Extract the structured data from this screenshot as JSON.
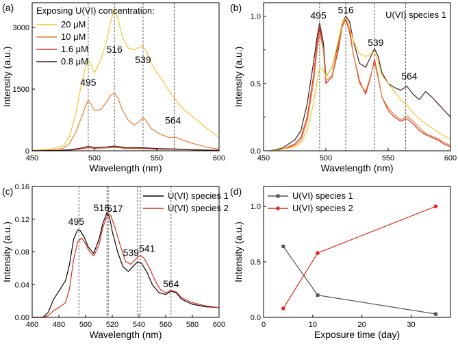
{
  "chart_data": [
    {
      "panel": "(a)",
      "type": "line",
      "xlabel": "Wavelength (nm)",
      "ylabel": "Intensity (a.u.)",
      "xlim": [
        450,
        600
      ],
      "ylim": [
        0,
        3600
      ],
      "xticks": [
        450,
        500,
        550,
        600
      ],
      "yticks": [
        0,
        1500,
        3000
      ],
      "legend_title": "Exposing U(VI) concentration:",
      "vlines": [
        495,
        516,
        539,
        564
      ],
      "annotations": [
        {
          "text": "495",
          "x": 495,
          "y": 1580
        },
        {
          "text": "516",
          "x": 516,
          "y": 2380
        },
        {
          "text": "539",
          "x": 539,
          "y": 2130
        },
        {
          "text": "564",
          "x": 563,
          "y": 660
        }
      ],
      "series": [
        {
          "name": "20 μM",
          "color": "#f4c430",
          "x": [
            450,
            465,
            475,
            480,
            485,
            490,
            493,
            495,
            497,
            500,
            505,
            510,
            513,
            516,
            519,
            522,
            527,
            532,
            536,
            539,
            542,
            545,
            550,
            555,
            560,
            565,
            570,
            580,
            590,
            600
          ],
          "y": [
            10,
            40,
            120,
            350,
            900,
            1700,
            2050,
            2200,
            2100,
            1900,
            2200,
            2700,
            3150,
            3450,
            3200,
            2800,
            2500,
            2450,
            2520,
            2550,
            2400,
            2150,
            1900,
            1700,
            1450,
            1250,
            1050,
            800,
            550,
            320
          ]
        },
        {
          "name": "10 μM",
          "color": "#ec7a30",
          "x": [
            450,
            465,
            475,
            480,
            485,
            490,
            493,
            495,
            497,
            500,
            505,
            510,
            513,
            516,
            519,
            522,
            527,
            532,
            536,
            539,
            542,
            545,
            550,
            555,
            560,
            565,
            570,
            580,
            590,
            600
          ],
          "y": [
            5,
            20,
            60,
            180,
            450,
            850,
            1100,
            1230,
            1150,
            980,
            1000,
            1200,
            1350,
            1400,
            1280,
            1020,
            750,
            620,
            720,
            800,
            720,
            560,
            450,
            380,
            320,
            330,
            270,
            170,
            90,
            40
          ]
        },
        {
          "name": "1.6 μM",
          "color": "#d93c26",
          "x": [
            450,
            470,
            480,
            490,
            495,
            500,
            510,
            516,
            525,
            539,
            550,
            564,
            580,
            600
          ],
          "y": [
            0,
            5,
            15,
            50,
            75,
            60,
            70,
            85,
            60,
            55,
            40,
            35,
            20,
            10
          ]
        },
        {
          "name": "0.8 μM",
          "color": "#3a1f1a",
          "x": [
            450,
            470,
            480,
            490,
            495,
            500,
            510,
            516,
            525,
            539,
            550,
            564,
            580,
            600
          ],
          "y": [
            0,
            8,
            25,
            70,
            110,
            80,
            95,
            115,
            80,
            75,
            55,
            45,
            25,
            12
          ]
        }
      ]
    },
    {
      "panel": "(b)",
      "type": "line",
      "title": "U(VI) species 1",
      "xlabel": "Wavelength (nm)",
      "ylabel": "Intensity (a.u.)",
      "xlim": [
        450,
        600
      ],
      "ylim": [
        0,
        1.1
      ],
      "xticks": [
        450,
        500,
        550,
        600
      ],
      "yticks": [
        0.0,
        0.5,
        1.0
      ],
      "ytick_labels": [
        "0.0",
        "0.5",
        "1.0"
      ],
      "yminor": [
        0.25,
        0.75
      ],
      "vlines": [
        495,
        516,
        539,
        564
      ],
      "annotations": [
        {
          "text": "495",
          "x": 494,
          "y": 0.98
        },
        {
          "text": "516",
          "x": 516,
          "y": 1.02
        },
        {
          "text": "539",
          "x": 540,
          "y": 0.78
        },
        {
          "text": "564",
          "x": 567,
          "y": 0.53
        }
      ],
      "series": [
        {
          "name": "dark",
          "color": "#3a1f1a",
          "x": [
            455,
            465,
            475,
            480,
            485,
            490,
            493,
            495,
            498,
            500,
            505,
            510,
            513,
            516,
            519,
            522,
            527,
            532,
            536,
            539,
            542,
            545,
            550,
            555,
            560,
            565,
            570,
            575,
            580,
            585,
            590,
            595,
            600
          ],
          "y": [
            0.0,
            0.02,
            0.08,
            0.15,
            0.35,
            0.65,
            0.85,
            0.95,
            0.8,
            0.55,
            0.62,
            0.8,
            0.95,
            1.0,
            0.96,
            0.82,
            0.65,
            0.62,
            0.7,
            0.76,
            0.7,
            0.58,
            0.5,
            0.47,
            0.45,
            0.48,
            0.42,
            0.38,
            0.44,
            0.4,
            0.35,
            0.3,
            0.25
          ]
        },
        {
          "name": "red",
          "color": "#e02a1e",
          "x": [
            455,
            465,
            475,
            480,
            485,
            490,
            493,
            495,
            498,
            500,
            505,
            510,
            513,
            516,
            519,
            522,
            527,
            532,
            536,
            539,
            542,
            545,
            550,
            555,
            560,
            565,
            570,
            575,
            580,
            585,
            590,
            595,
            600
          ],
          "y": [
            0.0,
            0.01,
            0.05,
            0.1,
            0.25,
            0.55,
            0.8,
            0.92,
            0.75,
            0.5,
            0.55,
            0.75,
            0.92,
            0.98,
            0.88,
            0.72,
            0.52,
            0.42,
            0.55,
            0.68,
            0.55,
            0.4,
            0.3,
            0.25,
            0.22,
            0.24,
            0.2,
            0.15,
            0.12,
            0.1,
            0.08,
            0.05,
            0.03
          ]
        },
        {
          "name": "orange",
          "color": "#ec7a30",
          "x": [
            455,
            465,
            475,
            480,
            485,
            490,
            493,
            495,
            498,
            500,
            505,
            510,
            513,
            516,
            519,
            522,
            527,
            532,
            536,
            539,
            542,
            545,
            550,
            555,
            560,
            565,
            570,
            575,
            580,
            585,
            590,
            595,
            600
          ],
          "y": [
            0.0,
            0.01,
            0.04,
            0.08,
            0.22,
            0.5,
            0.75,
            0.88,
            0.75,
            0.52,
            0.56,
            0.78,
            0.93,
            0.99,
            0.92,
            0.72,
            0.5,
            0.44,
            0.56,
            0.66,
            0.54,
            0.4,
            0.32,
            0.27,
            0.23,
            0.26,
            0.22,
            0.17,
            0.13,
            0.11,
            0.09,
            0.06,
            0.04
          ]
        },
        {
          "name": "yellow",
          "color": "#f4c430",
          "x": [
            455,
            465,
            475,
            480,
            485,
            490,
            493,
            495,
            498,
            500,
            505,
            510,
            513,
            516,
            519,
            522,
            527,
            532,
            536,
            539,
            542,
            545,
            550,
            555,
            560,
            565,
            570,
            575,
            580,
            585,
            590,
            595,
            600
          ],
          "y": [
            0.0,
            0.01,
            0.03,
            0.06,
            0.15,
            0.35,
            0.52,
            0.62,
            0.6,
            0.55,
            0.62,
            0.82,
            0.95,
            0.99,
            0.92,
            0.82,
            0.72,
            0.7,
            0.72,
            0.73,
            0.66,
            0.56,
            0.5,
            0.44,
            0.38,
            0.34,
            0.28,
            0.24,
            0.2,
            0.17,
            0.14,
            0.11,
            0.09
          ]
        }
      ]
    },
    {
      "panel": "(c)",
      "type": "line",
      "xlabel": "Wavelength (nm)",
      "ylabel": "Intensity (a.u.)",
      "xlim": [
        460,
        600
      ],
      "ylim": [
        0,
        0.16
      ],
      "xticks": [
        460,
        480,
        500,
        520,
        540,
        560,
        580,
        600
      ],
      "yticks": [
        0.0,
        0.04,
        0.08,
        0.12,
        0.16
      ],
      "ytick_labels": [
        "0.00",
        "0.04",
        "0.08",
        "0.12",
        "0.16"
      ],
      "vlines": [
        495,
        516,
        517,
        539,
        541,
        564
      ],
      "annotations": [
        {
          "text": "495",
          "x": 493,
          "y": 0.113
        },
        {
          "text": "516",
          "x": 512,
          "y": 0.13
        },
        {
          "text": "517",
          "x": 522,
          "y": 0.129
        },
        {
          "text": "539",
          "x": 534,
          "y": 0.075
        },
        {
          "text": "541",
          "x": 546,
          "y": 0.08
        },
        {
          "text": "564",
          "x": 564,
          "y": 0.037
        }
      ],
      "series": [
        {
          "name": "U(VI) species 1",
          "color": "#000000",
          "x": [
            460,
            468,
            472,
            476,
            480,
            485,
            488,
            491,
            494,
            496,
            499,
            502,
            506,
            510,
            513,
            516,
            518,
            520,
            524,
            528,
            532,
            536,
            539,
            542,
            546,
            550,
            555,
            560,
            564,
            568,
            572,
            580,
            590,
            600
          ],
          "y": [
            0.0,
            0.0,
            0.006,
            0.022,
            0.032,
            0.045,
            0.065,
            0.095,
            0.107,
            0.106,
            0.098,
            0.086,
            0.078,
            0.095,
            0.115,
            0.128,
            0.122,
            0.105,
            0.08,
            0.062,
            0.056,
            0.063,
            0.068,
            0.066,
            0.055,
            0.04,
            0.03,
            0.028,
            0.032,
            0.03,
            0.022,
            0.016,
            0.013,
            0.012
          ]
        },
        {
          "name": "U(VI) species 2",
          "color": "#e02a1e",
          "x": [
            460,
            468,
            472,
            476,
            480,
            485,
            488,
            491,
            494,
            497,
            500,
            503,
            506,
            510,
            513,
            517,
            519,
            522,
            526,
            530,
            534,
            538,
            541,
            544,
            548,
            552,
            556,
            560,
            564,
            568,
            572,
            580,
            590,
            600
          ],
          "y": [
            0.0,
            0.0,
            0.002,
            0.008,
            0.012,
            0.018,
            0.035,
            0.07,
            0.092,
            0.097,
            0.09,
            0.08,
            0.075,
            0.088,
            0.11,
            0.127,
            0.124,
            0.11,
            0.088,
            0.068,
            0.065,
            0.072,
            0.076,
            0.072,
            0.06,
            0.045,
            0.034,
            0.03,
            0.033,
            0.031,
            0.024,
            0.018,
            0.014,
            0.012
          ]
        }
      ]
    },
    {
      "panel": "(d)",
      "type": "line",
      "xlabel": "Exposure time (day)",
      "ylabel": "Intensity (a.u.)",
      "xlim": [
        0,
        38
      ],
      "ylim": [
        0,
        1.18
      ],
      "xticks": [
        0,
        10,
        20,
        30
      ],
      "yticks": [
        0.0,
        0.5,
        1.0
      ],
      "ytick_labels": [
        "0.0",
        "0.5",
        "1.0"
      ],
      "series": [
        {
          "name": "U(VI) species 1",
          "color": "#555555",
          "marker": "square",
          "x": [
            4,
            11,
            35
          ],
          "y": [
            0.64,
            0.2,
            0.03
          ]
        },
        {
          "name": "U(VI) species 2",
          "color": "#e02a1e",
          "marker": "circle",
          "x": [
            4,
            11,
            35
          ],
          "y": [
            0.08,
            0.58,
            1.0
          ]
        }
      ]
    }
  ]
}
